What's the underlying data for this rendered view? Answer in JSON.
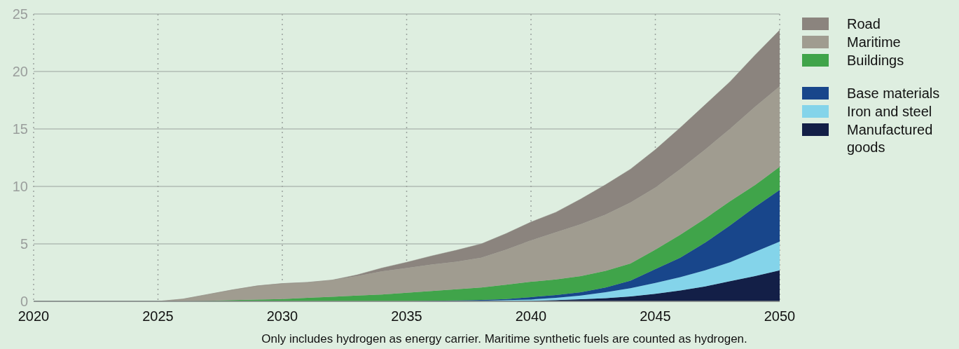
{
  "chart_data": {
    "type": "area",
    "stacked": true,
    "x": [
      2020,
      2021,
      2022,
      2023,
      2024,
      2025,
      2026,
      2027,
      2028,
      2029,
      2030,
      2031,
      2032,
      2033,
      2034,
      2035,
      2036,
      2037,
      2038,
      2039,
      2040,
      2041,
      2042,
      2043,
      2044,
      2045,
      2046,
      2047,
      2048,
      2049,
      2050
    ],
    "series": [
      {
        "name": "Manufactured goods",
        "color": "#131f47",
        "values": [
          0,
          0,
          0,
          0,
          0,
          0,
          0,
          0,
          0,
          0,
          0,
          0,
          0,
          0,
          0,
          0,
          0,
          0,
          0.02,
          0.03,
          0.05,
          0.1,
          0.18,
          0.28,
          0.42,
          0.65,
          0.95,
          1.3,
          1.75,
          2.2,
          2.7
        ]
      },
      {
        "name": "Iron and steel",
        "color": "#84d4ea",
        "values": [
          0,
          0,
          0,
          0,
          0,
          0,
          0,
          0,
          0,
          0,
          0,
          0,
          0,
          0,
          0,
          0,
          0,
          0,
          0.03,
          0.07,
          0.11,
          0.2,
          0.32,
          0.52,
          0.73,
          0.95,
          1.15,
          1.4,
          1.65,
          2.1,
          2.5
        ]
      },
      {
        "name": "Base materials",
        "color": "#18468b",
        "values": [
          0,
          0,
          0,
          0,
          0,
          0,
          0,
          0,
          0,
          0,
          0,
          0,
          0,
          0,
          0,
          0,
          0.05,
          0.08,
          0.07,
          0.1,
          0.21,
          0.25,
          0.3,
          0.4,
          0.65,
          1.2,
          1.7,
          2.4,
          3.2,
          3.9,
          4.5
        ]
      },
      {
        "name": "Buildings",
        "color": "#40a44a",
        "values": [
          0,
          0,
          0,
          0,
          0,
          0,
          0,
          0.05,
          0.1,
          0.15,
          0.2,
          0.3,
          0.4,
          0.5,
          0.6,
          0.75,
          0.85,
          0.97,
          1.08,
          1.25,
          1.33,
          1.35,
          1.4,
          1.45,
          1.5,
          1.7,
          2.0,
          2.1,
          2.1,
          1.9,
          2.0
        ]
      },
      {
        "name": "Maritime",
        "color": "#a09c90",
        "values": [
          0,
          0,
          0,
          0,
          0,
          0,
          0.2,
          0.55,
          0.9,
          1.2,
          1.35,
          1.35,
          1.45,
          1.7,
          2.0,
          2.15,
          2.3,
          2.4,
          2.6,
          3.05,
          3.6,
          4.1,
          4.5,
          4.9,
          5.3,
          5.4,
          5.7,
          6.0,
          6.3,
          6.8,
          7.0
        ]
      },
      {
        "name": "Road",
        "color": "#8b847e",
        "values": [
          0,
          0,
          0,
          0,
          0,
          0,
          0,
          0,
          0,
          0,
          0,
          0,
          0,
          0.1,
          0.3,
          0.5,
          0.75,
          1.0,
          1.2,
          1.4,
          1.6,
          1.75,
          2.2,
          2.6,
          2.9,
          3.3,
          3.6,
          3.9,
          4.1,
          4.5,
          4.9
        ]
      }
    ],
    "xlim": [
      2020,
      2050
    ],
    "xticks": [
      2020,
      2025,
      2030,
      2035,
      2040,
      2045,
      2050
    ],
    "ylim": [
      0,
      25
    ],
    "yticks": [
      0,
      5,
      10,
      15,
      20,
      25
    ],
    "grid": true,
    "legend": "top right",
    "annotations": [
      "Only includes hydrogen as energy carrier. Maritime synthetic fuels are counted as hydrogen."
    ]
  }
}
